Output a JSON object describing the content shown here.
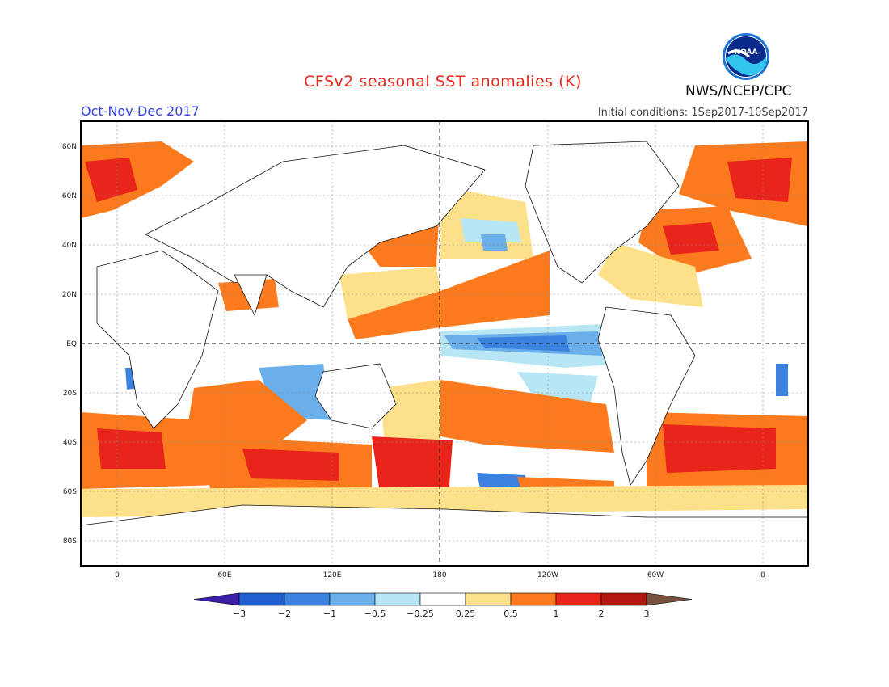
{
  "title": "CFSv2 seasonal SST anomalies (K)",
  "season": "Oct-Nov-Dec 2017",
  "initial_conditions": "Initial conditions: 1Sep2017-10Sep2017",
  "agency": "NWS/NCEP/CPC",
  "logo_text": "NOAA",
  "lat_labels": [
    "80N",
    "60N",
    "40N",
    "20N",
    "EQ",
    "20S",
    "40S",
    "60S",
    "80S"
  ],
  "lon_labels": [
    "0",
    "60E",
    "120E",
    "180",
    "120W",
    "60W",
    "0"
  ],
  "colorbar": {
    "labels": [
      "-3",
      "-2",
      "-1",
      "-0.5",
      "-0.25",
      "0.25",
      "0.5",
      "1",
      "2",
      "3"
    ],
    "colors": [
      "#3b1ea8",
      "#1f5fcf",
      "#3b82e0",
      "#6aaeea",
      "#b8e6f4",
      "#ffffff",
      "#fde18a",
      "#fc7a1e",
      "#e8241b",
      "#b3150f",
      "#7a5040"
    ]
  }
}
